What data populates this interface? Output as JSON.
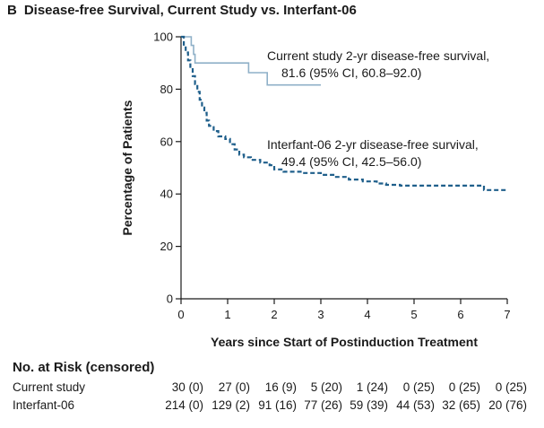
{
  "panel": {
    "letter": "B",
    "title": "Disease-free Survival, Current Study vs. Interfant-06"
  },
  "chart_data": {
    "type": "line",
    "xlabel": "Years since Start of Postinduction Treatment",
    "ylabel": "Percentage of Patients",
    "xlim": [
      0,
      7
    ],
    "ylim": [
      0,
      100
    ],
    "x_ticks": [
      0,
      1,
      2,
      3,
      4,
      5,
      6,
      7
    ],
    "y_ticks": [
      0,
      20,
      40,
      60,
      80,
      100
    ],
    "grid": false,
    "colors": {
      "current": "#8fb0c8",
      "interfant": "#1f5f8b",
      "axis": "#1a1a1a"
    },
    "series": [
      {
        "name": "Current study",
        "style": "solid",
        "step": true,
        "points": [
          [
            0,
            100
          ],
          [
            0.22,
            100
          ],
          [
            0.22,
            96.7
          ],
          [
            0.27,
            96.7
          ],
          [
            0.27,
            93.3
          ],
          [
            0.3,
            93.3
          ],
          [
            0.3,
            90
          ],
          [
            1.45,
            90
          ],
          [
            1.45,
            86.3
          ],
          [
            1.85,
            86.3
          ],
          [
            1.85,
            81.6
          ],
          [
            3.0,
            81.6
          ]
        ]
      },
      {
        "name": "Interfant-06",
        "style": "dashed",
        "step": true,
        "points": [
          [
            0,
            100
          ],
          [
            0.06,
            97
          ],
          [
            0.1,
            94
          ],
          [
            0.15,
            91
          ],
          [
            0.2,
            88
          ],
          [
            0.25,
            85
          ],
          [
            0.3,
            82
          ],
          [
            0.35,
            79
          ],
          [
            0.4,
            76
          ],
          [
            0.45,
            73
          ],
          [
            0.5,
            71
          ],
          [
            0.55,
            68
          ],
          [
            0.6,
            66
          ],
          [
            0.7,
            64
          ],
          [
            0.8,
            62
          ],
          [
            0.95,
            61
          ],
          [
            1.05,
            59
          ],
          [
            1.15,
            57
          ],
          [
            1.25,
            55
          ],
          [
            1.35,
            54
          ],
          [
            1.5,
            53
          ],
          [
            1.7,
            52
          ],
          [
            1.9,
            51
          ],
          [
            2.0,
            49.4
          ],
          [
            2.2,
            48.5
          ],
          [
            2.6,
            48
          ],
          [
            3.0,
            47.3
          ],
          [
            3.3,
            46.5
          ],
          [
            3.6,
            45.5
          ],
          [
            3.9,
            44.8
          ],
          [
            4.2,
            44
          ],
          [
            4.4,
            43.5
          ],
          [
            4.7,
            43.2
          ],
          [
            6.5,
            43.2
          ],
          [
            6.5,
            41.5
          ],
          [
            7.0,
            41.5
          ]
        ]
      }
    ],
    "annotations": [
      {
        "series": "Current study",
        "line1": "Current study 2-yr disease-free survival,",
        "line2": "81.6 (95% CI, 60.8–92.0)"
      },
      {
        "series": "Interfant-06",
        "line1": "Interfant-06 2-yr disease-free survival,",
        "line2": "49.4 (95% CI, 42.5–56.0)"
      }
    ]
  },
  "risk_table": {
    "title": "No. at Risk (censored)",
    "rows": [
      {
        "label": "Current study",
        "values": [
          "30 (0)",
          "27 (0)",
          "16 (9)",
          "5 (20)",
          "1 (24)",
          "0 (25)",
          "0 (25)",
          "0 (25)"
        ]
      },
      {
        "label": "Interfant-06",
        "values": [
          "214 (0)",
          "129 (2)",
          "91 (16)",
          "77 (26)",
          "59 (39)",
          "44 (53)",
          "32 (65)",
          "20 (76)"
        ]
      }
    ]
  }
}
